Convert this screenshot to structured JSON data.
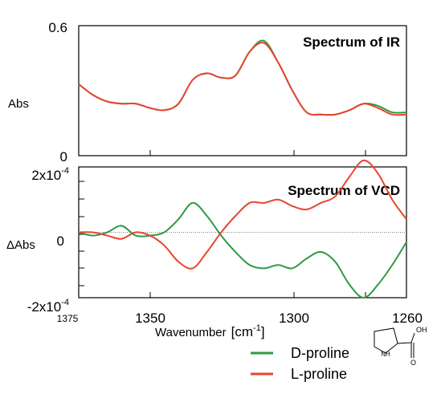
{
  "chart_data": [
    {
      "type": "line",
      "title": "Spectrum of IR",
      "ylabel": "Abs",
      "ylim": [
        0,
        0.6
      ],
      "y_ticks": [
        "0.6",
        "0"
      ],
      "x_reversed": true,
      "xlim": [
        1375,
        1260
      ],
      "series": [
        {
          "name": "D-proline",
          "color": "#2e9a46",
          "x": [
            1375,
            1370,
            1365,
            1360,
            1355,
            1350,
            1345,
            1340,
            1335,
            1330,
            1325,
            1320,
            1315,
            1310,
            1305,
            1300,
            1295,
            1290,
            1285,
            1280,
            1275,
            1270,
            1265,
            1260
          ],
          "values": [
            0.33,
            0.28,
            0.25,
            0.24,
            0.24,
            0.22,
            0.21,
            0.24,
            0.35,
            0.38,
            0.36,
            0.37,
            0.48,
            0.53,
            0.43,
            0.3,
            0.2,
            0.19,
            0.19,
            0.21,
            0.24,
            0.23,
            0.2,
            0.2
          ]
        },
        {
          "name": "L-proline",
          "color": "#e8452f",
          "x": [
            1375,
            1370,
            1365,
            1360,
            1355,
            1350,
            1345,
            1340,
            1335,
            1330,
            1325,
            1320,
            1315,
            1310,
            1305,
            1300,
            1295,
            1290,
            1285,
            1280,
            1275,
            1270,
            1265,
            1260
          ],
          "values": [
            0.33,
            0.28,
            0.25,
            0.24,
            0.24,
            0.22,
            0.21,
            0.24,
            0.35,
            0.38,
            0.36,
            0.37,
            0.48,
            0.52,
            0.43,
            0.3,
            0.2,
            0.19,
            0.19,
            0.21,
            0.24,
            0.22,
            0.19,
            0.19
          ]
        }
      ]
    },
    {
      "type": "line",
      "title": "Spectrum of VCD",
      "ylabel": "ΔAbs",
      "ylim": [
        -0.0002,
        0.0002
      ],
      "y_ticks": [
        {
          "mantissa": "2x10",
          "exp": "-4"
        },
        {
          "mantissa": "0",
          "exp": ""
        },
        {
          "mantissa": "-2x10",
          "exp": "-4"
        }
      ],
      "zero_line": true,
      "x_reversed": true,
      "xlim": [
        1375,
        1260
      ],
      "x_ticks": [
        "1375",
        "1350",
        "1300",
        "1260"
      ],
      "xlabel": "Wavenumber",
      "xlabel_unit": {
        "base": "[cm",
        "exp": "-1",
        "close": "]"
      },
      "series": [
        {
          "name": "D-proline",
          "color": "#2e9a46",
          "x": [
            1375,
            1370,
            1365,
            1360,
            1355,
            1350,
            1345,
            1340,
            1335,
            1330,
            1325,
            1320,
            1315,
            1310,
            1305,
            1300,
            1295,
            1290,
            1285,
            1280,
            1275,
            1270,
            1265,
            1260
          ],
          "values": [
            0.0,
            -1e-05,
            0.0,
            2e-05,
            -1e-05,
            -1e-05,
            0.0,
            4e-05,
            9e-05,
            5e-05,
            -1e-05,
            -6e-05,
            -0.0001,
            -0.00011,
            -0.0001,
            -0.00011,
            -8e-05,
            -6e-05,
            -9e-05,
            -0.00016,
            -0.0002,
            -0.00016,
            -0.0001,
            -3e-05
          ]
        },
        {
          "name": "L-proline",
          "color": "#e8452f",
          "x": [
            1375,
            1370,
            1365,
            1360,
            1355,
            1350,
            1345,
            1340,
            1335,
            1330,
            1325,
            1320,
            1315,
            1310,
            1305,
            1300,
            1295,
            1290,
            1285,
            1280,
            1275,
            1270,
            1265,
            1260
          ],
          "values": [
            0.0,
            0.0,
            -1e-05,
            -2e-05,
            0.0,
            -1e-05,
            -4e-05,
            -9e-05,
            -0.00011,
            -6e-05,
            0.0,
            5e-05,
            9e-05,
            9e-05,
            0.0001,
            8e-05,
            7e-05,
            9e-05,
            0.00011,
            0.00017,
            0.00022,
            0.00018,
            0.0001,
            4e-05
          ]
        }
      ]
    }
  ],
  "legend": [
    {
      "label": "D-proline",
      "color": "#2e9a46"
    },
    {
      "label": "L-proline",
      "color": "#e8452f"
    }
  ],
  "structure_label": "OH"
}
